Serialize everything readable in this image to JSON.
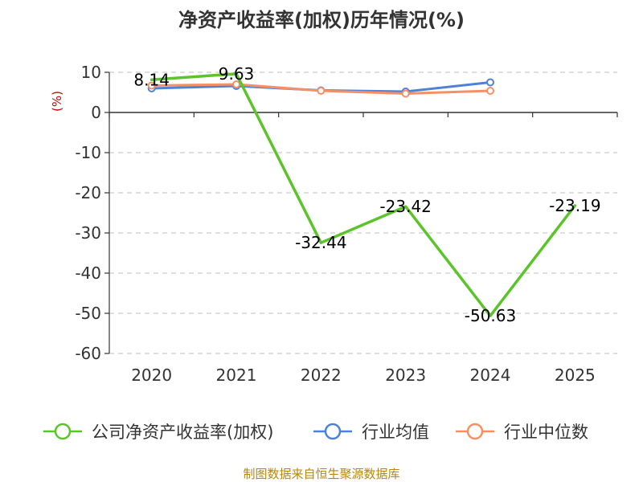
{
  "chart_data": {
    "type": "line",
    "title": "净资产收益率(加权)历年情况(%)",
    "ylabel": "(%)",
    "categories": [
      "2020",
      "2021",
      "2022",
      "2023",
      "2024",
      "2025"
    ],
    "ylim": [
      -60,
      10
    ],
    "yticks": [
      10,
      0,
      -10,
      -20,
      -30,
      -40,
      -50,
      -60
    ],
    "grid": true,
    "legend_position": "bottom",
    "series": [
      {
        "name": "公司净资产收益率(加权)",
        "color": "#5cc42b",
        "values": [
          8.14,
          9.63,
          -32.44,
          -23.42,
          -50.63,
          -23.19
        ],
        "labels": [
          "8.14",
          "9.63",
          "-32.44",
          "-23.42",
          "-50.63",
          "-23.19"
        ]
      },
      {
        "name": "行业均值",
        "color": "#4f81d9",
        "values": [
          6.0,
          6.6,
          5.5,
          5.2,
          7.5,
          null
        ]
      },
      {
        "name": "行业中位数",
        "color": "#f59064",
        "values": [
          6.7,
          7.0,
          5.4,
          4.7,
          5.4,
          null
        ]
      }
    ],
    "source": "制图数据来自恒生聚源数据库"
  }
}
